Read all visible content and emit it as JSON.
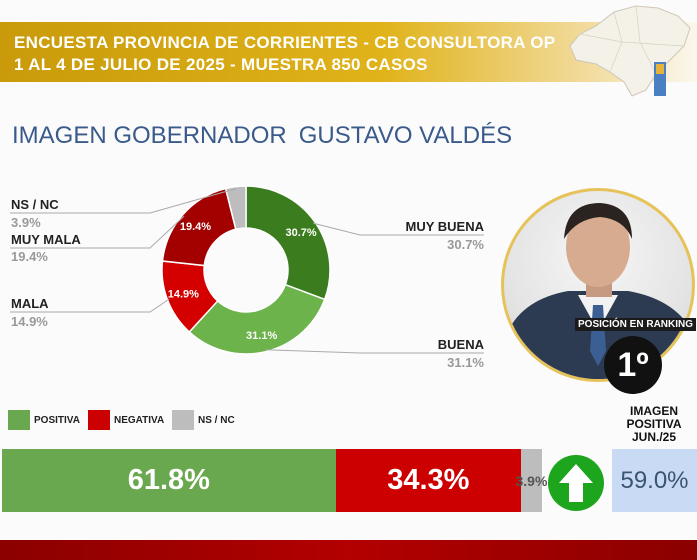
{
  "header": {
    "line1": "ENCUESTA PROVINCIA DE CORRIENTES - CB CONSULTORA OP",
    "line2": "1 AL 4 DE JULIO DE 2025 - MUESTRA 850 CASOS"
  },
  "title": {
    "label": "IMAGEN GOBERNADOR",
    "name": "GUSTAVO VALDÉS"
  },
  "colors": {
    "muy_buena": "#3b7d1e",
    "buena": "#6bb34a",
    "mala": "#d40000",
    "muy_mala": "#a30000",
    "ns_nc": "#bdbdbd",
    "positiva": "#6aa84f",
    "negativa": "#cc0000",
    "arrow": "#1ea51e"
  },
  "chart_data": [
    {
      "type": "pie",
      "slices": [
        {
          "label": "MUY BUENA",
          "value": 30.7,
          "display": "30.7%"
        },
        {
          "label": "BUENA",
          "value": 31.1,
          "display": "31.1%"
        },
        {
          "label": "MALA",
          "value": 14.9,
          "display": "14.9%"
        },
        {
          "label": "MUY MALA",
          "value": 19.4,
          "display": "19.4%"
        },
        {
          "label": "NS / NC",
          "value": 3.9,
          "display": "3.9%"
        }
      ]
    },
    {
      "type": "bar",
      "stacked": true,
      "orientation": "horizontal",
      "segments": [
        {
          "label": "POSITIVA",
          "value": 61.8,
          "display": "61.8%"
        },
        {
          "label": "NEGATIVA",
          "value": 34.3,
          "display": "34.3%"
        },
        {
          "label": "NS / NC",
          "value": 3.9,
          "display": "3.9%"
        }
      ]
    }
  ],
  "legend": {
    "positiva": "POSITIVA",
    "negativa": "NEGATIVA",
    "ns_nc": "NS / NC"
  },
  "ranking": {
    "label": "POSICIÓN EN RANKING",
    "value": "1º"
  },
  "imagen_positiva": {
    "label": "IMAGEN POSITIVA JUN./25",
    "value": "59.0%"
  },
  "icons": {
    "map": "corrientes-map-icon",
    "arrow": "arrow-up-icon",
    "photo": "governor-photo"
  }
}
